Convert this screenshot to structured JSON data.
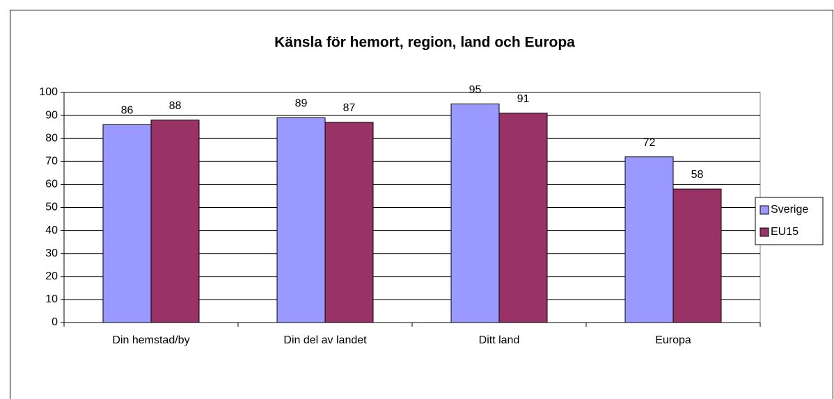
{
  "chart_data": {
    "type": "bar",
    "title": "Känsla för hemort, region, land och Europa",
    "categories": [
      "Din hemstad/by",
      "Din del av landet",
      "Ditt land",
      "Europa"
    ],
    "series": [
      {
        "name": "Sverige",
        "color": "#9999ff",
        "values": [
          86,
          89,
          95,
          72
        ]
      },
      {
        "name": "EU15",
        "color": "#993366",
        "values": [
          88,
          87,
          91,
          58
        ]
      }
    ],
    "ylim": [
      0,
      100
    ],
    "yticks": [
      0,
      10,
      20,
      30,
      40,
      50,
      60,
      70,
      80,
      90,
      100
    ],
    "grid": true,
    "legend": "right"
  }
}
